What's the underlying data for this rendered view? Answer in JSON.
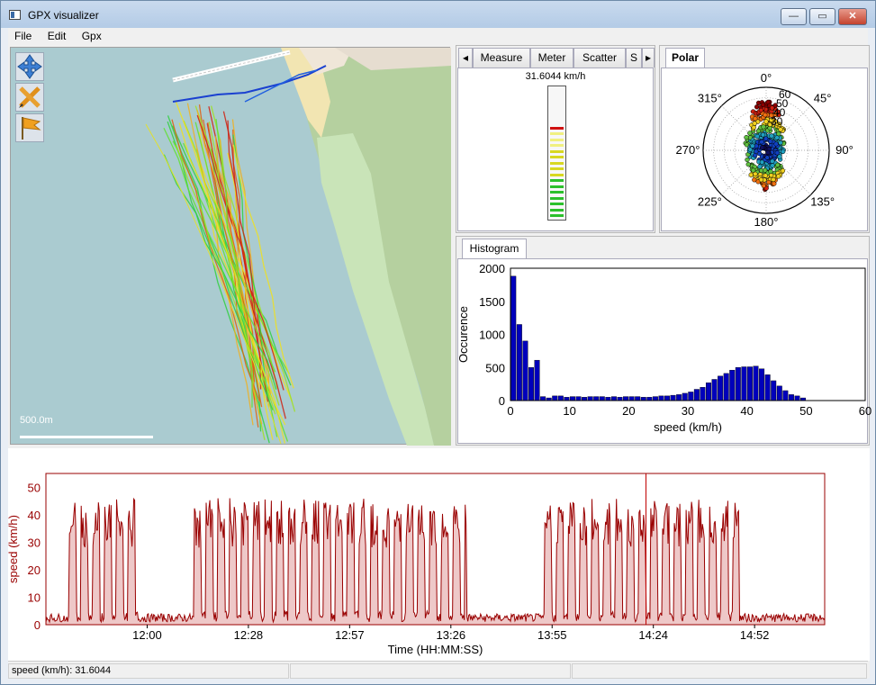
{
  "window": {
    "title": "GPX visualizer",
    "min_label": "—",
    "max_label": "▭",
    "close_label": "✕"
  },
  "menu": [
    "File",
    "Edit",
    "Gpx"
  ],
  "map": {
    "scale_label": "500.0m",
    "tools": [
      "move-icon",
      "edit-icon",
      "flag-icon"
    ]
  },
  "gauge_panel": {
    "tabs": [
      "Measure",
      "Meter",
      "Scatter",
      "S"
    ],
    "active_tab": "Meter",
    "value_label": "31.6044 km/h",
    "level_fraction": 0.72
  },
  "polar_panel": {
    "tab": "Polar",
    "angle_labels": [
      "0°",
      "45°",
      "90°",
      "135°",
      "180°",
      "225°",
      "270°",
      "315°"
    ],
    "radial_labels": [
      "60",
      "50",
      "40",
      "30"
    ]
  },
  "histogram_panel": {
    "tab": "Histogram",
    "chart_data": {
      "type": "bar",
      "xlabel": "speed (km/h)",
      "ylabel": "Occurence",
      "xlim": [
        0,
        60
      ],
      "ylim": [
        0,
        2000
      ],
      "xticks": [
        "0",
        "10",
        "20",
        "30",
        "40",
        "50",
        "60"
      ],
      "yticks": [
        "0",
        "500",
        "1000",
        "1500",
        "2000"
      ],
      "bin_width": 1,
      "values": [
        1880,
        1150,
        900,
        500,
        610,
        60,
        40,
        70,
        70,
        50,
        60,
        60,
        50,
        60,
        60,
        60,
        50,
        60,
        50,
        60,
        60,
        60,
        50,
        50,
        60,
        70,
        70,
        80,
        90,
        110,
        130,
        170,
        200,
        270,
        320,
        370,
        410,
        460,
        500,
        510,
        510,
        520,
        480,
        390,
        300,
        220,
        150,
        90,
        70,
        40
      ],
      "color": "#0000bb"
    }
  },
  "speed_plot": {
    "chart_data": {
      "type": "area",
      "xlabel": "Time (HH:MM:SS)",
      "ylabel": "speed (km/h)",
      "ylim": [
        0,
        55
      ],
      "yticks": [
        "0",
        "10",
        "20",
        "30",
        "40",
        "50"
      ],
      "xticks": [
        "12:00",
        "12:28",
        "12:57",
        "13:26",
        "13:55",
        "14:24",
        "14:52"
      ],
      "line_color": "#990000",
      "fill_color": "#eec8c8"
    }
  },
  "status": {
    "text": "speed (km/h): 31.6044"
  }
}
